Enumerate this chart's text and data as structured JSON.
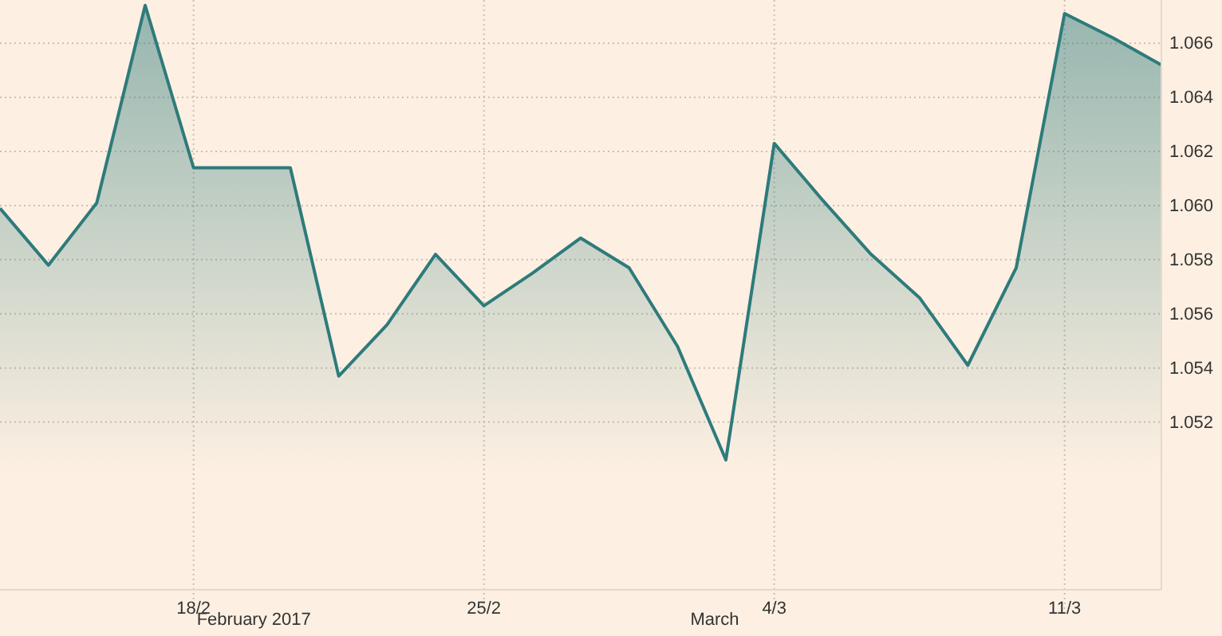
{
  "chart_data": {
    "type": "area",
    "categories": [
      null,
      null,
      null,
      null,
      "18/2",
      null,
      null,
      null,
      null,
      null,
      "25/2",
      null,
      null,
      null,
      null,
      null,
      "4/3",
      null,
      null,
      null,
      null,
      null,
      "11/3",
      null,
      null
    ],
    "series": [
      {
        "color": "#2e7b7b",
        "values": [
          1.0599,
          1.0578,
          1.0601,
          1.0674,
          1.0614,
          1.0614,
          1.0614,
          1.0537,
          1.0556,
          1.0582,
          1.0563,
          1.0575,
          1.0588,
          1.0577,
          1.0548,
          1.0506,
          1.0623,
          1.0602,
          1.0582,
          1.0566,
          1.0541,
          1.0577,
          1.0671,
          1.0662,
          1.0652
        ]
      }
    ],
    "ylim": [
      1.0458,
      1.0676
    ],
    "yticks": [
      {
        "value": 1.052,
        "label": "1.052"
      },
      {
        "value": 1.054,
        "label": "1.054"
      },
      {
        "value": 1.056,
        "label": "1.056"
      },
      {
        "value": 1.058,
        "label": "1.058"
      },
      {
        "value": 1.06,
        "label": "1.060"
      },
      {
        "value": 1.062,
        "label": "1.062"
      },
      {
        "value": 1.064,
        "label": "1.064"
      },
      {
        "value": 1.066,
        "label": "1.066"
      }
    ],
    "annotations": [
      "February 2017",
      "March"
    ],
    "grid": true
  }
}
